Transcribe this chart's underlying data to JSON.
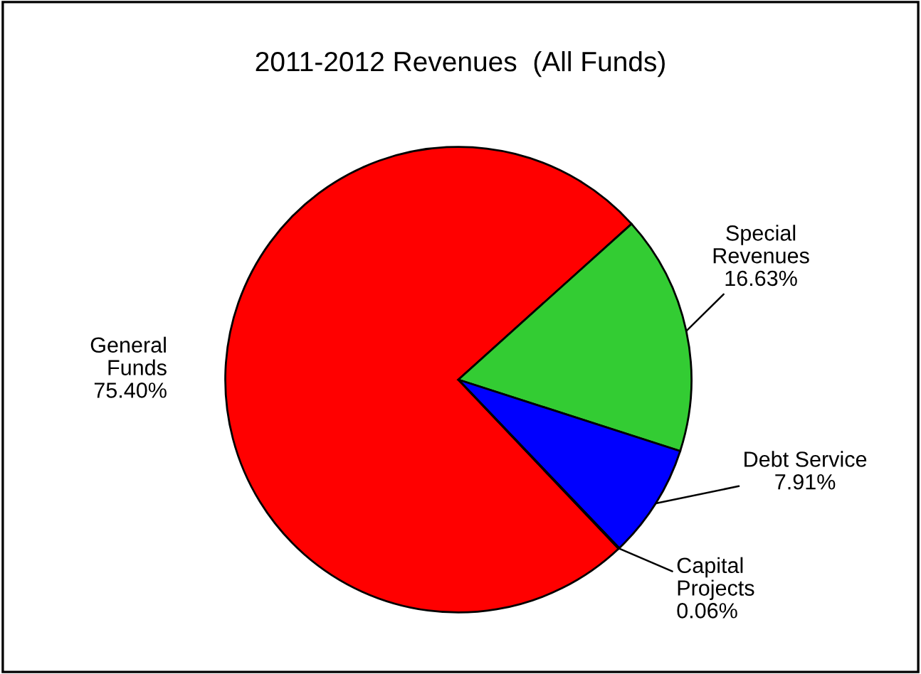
{
  "chart_data": {
    "type": "pie",
    "title": "2011-2012 Revenues  (All Funds)",
    "categories": [
      "General\nFunds",
      "Special\nRevenues",
      "Debt Service",
      "Capital\nProjects"
    ],
    "values": [
      75.4,
      16.63,
      7.91,
      0.06
    ],
    "value_labels": [
      "75.40%",
      "16.63%",
      "7.91%",
      "0.06%"
    ],
    "colors": [
      "#ff0000",
      "#33cc33",
      "#0000ff",
      "#ffff00"
    ]
  }
}
